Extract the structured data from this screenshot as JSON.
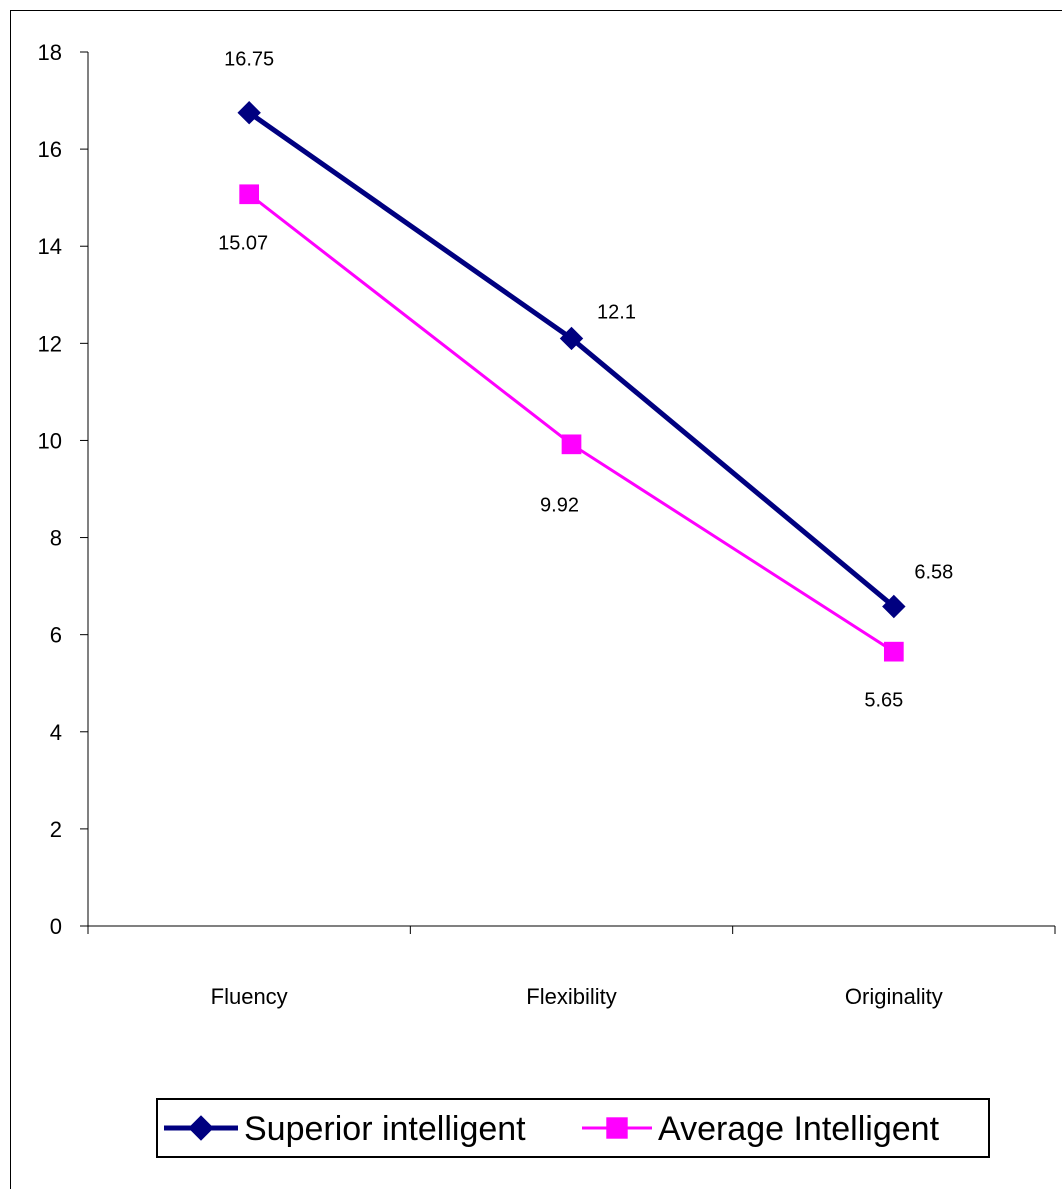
{
  "chart_data": {
    "type": "line",
    "categories": [
      "Fluency",
      "Flexibility",
      "Originality"
    ],
    "ylim": [
      0,
      18
    ],
    "yticks": [
      0,
      2,
      4,
      6,
      8,
      10,
      12,
      14,
      16,
      18
    ],
    "grid": false,
    "legend_position": "bottom",
    "series": [
      {
        "name": "Superior intelligent",
        "values": [
          16.75,
          12.1,
          6.58
        ],
        "data_labels": [
          "16.75",
          "12.1",
          "6.58"
        ],
        "color": "#000080",
        "marker": "diamond"
      },
      {
        "name": "Average Intelligent",
        "values": [
          15.07,
          9.92,
          5.65
        ],
        "data_labels": [
          "15.07",
          "9.92",
          "5.65"
        ],
        "color": "#FF00FF",
        "marker": "square"
      }
    ]
  }
}
